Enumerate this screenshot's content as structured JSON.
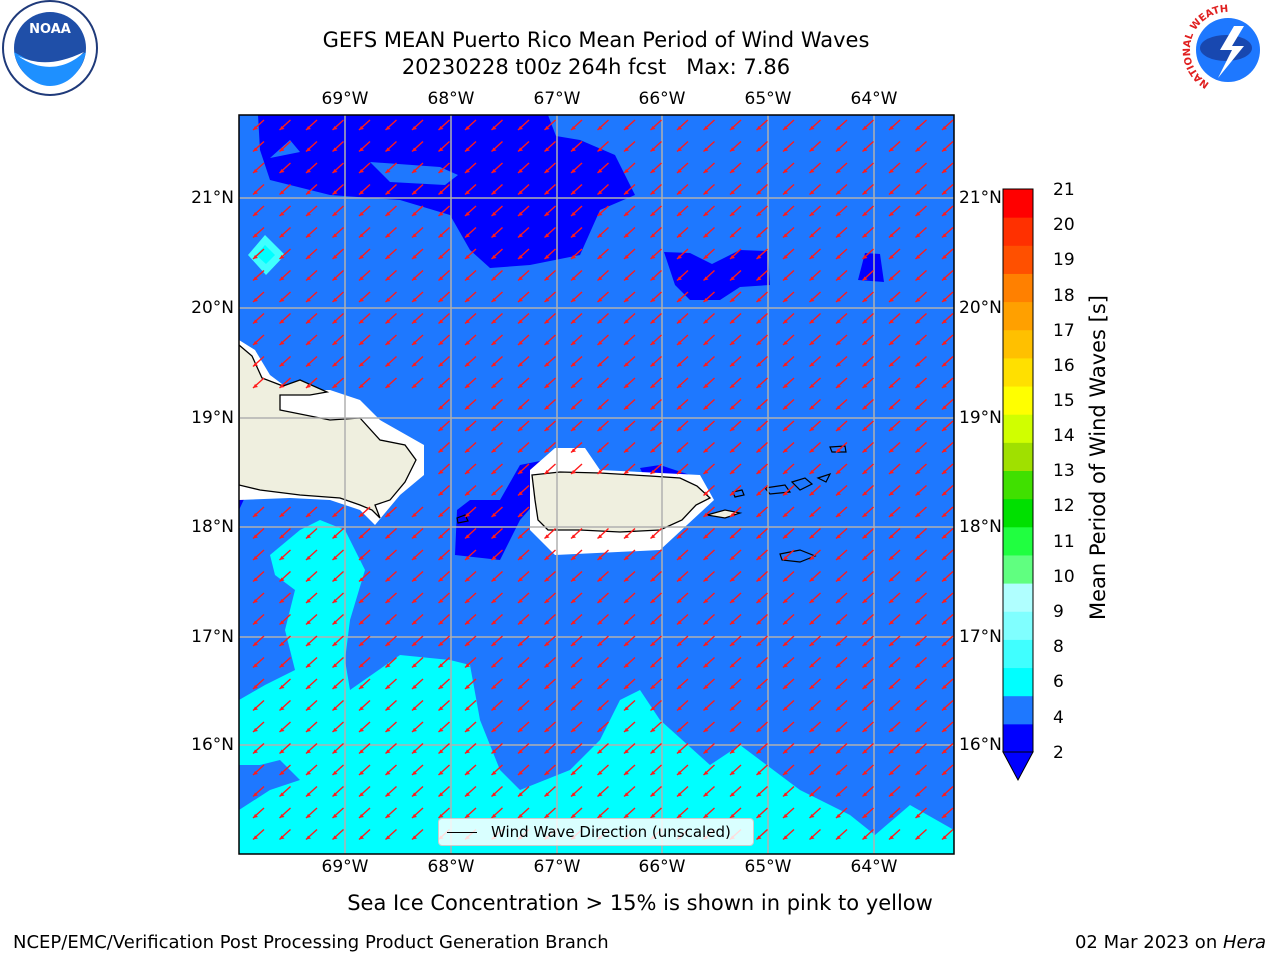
{
  "title": {
    "line1": "GEFS MEAN Puerto Rico Mean Period of Wind Waves",
    "line2": "20230228 t00z 264h fcst   Max: 7.86"
  },
  "axes": {
    "lon_labels": [
      "69°W",
      "68°W",
      "67°W",
      "66°W",
      "65°W",
      "64°W"
    ],
    "lat_labels": [
      "21°N",
      "20°N",
      "19°N",
      "18°N",
      "17°N",
      "16°N"
    ]
  },
  "colorbar": {
    "label": "Mean Period of Wind Waves [s]",
    "ticks": [
      "21",
      "20",
      "19",
      "18",
      "17",
      "16",
      "15",
      "14",
      "13",
      "12",
      "11",
      "10",
      "9",
      "8",
      "6",
      "4",
      "2"
    ],
    "colors": [
      "#0000ff",
      "#1e78ff",
      "#00ffff",
      "#40ffff",
      "#80ffff",
      "#b0ffff",
      "#60ff80",
      "#20ff40",
      "#00e000",
      "#40e000",
      "#a0e000",
      "#d0ff00",
      "#ffff00",
      "#ffe000",
      "#ffc000",
      "#ffa000",
      "#ff8000",
      "#ff5000",
      "#ff3000",
      "#ff0000"
    ]
  },
  "legend": {
    "label": "Wind Wave Direction (unscaled)"
  },
  "note": "Sea Ice Concentration > 15% is shown in pink to yellow",
  "footer": {
    "left": "NCEP/EMC/Verification Post Processing Product Generation Branch",
    "date": "02 Mar 2023 on ",
    "machine": "Hera"
  },
  "logos": {
    "noaa": "NOAA",
    "nws_ring": "NATIONAL WEATHER SERVICE"
  }
}
